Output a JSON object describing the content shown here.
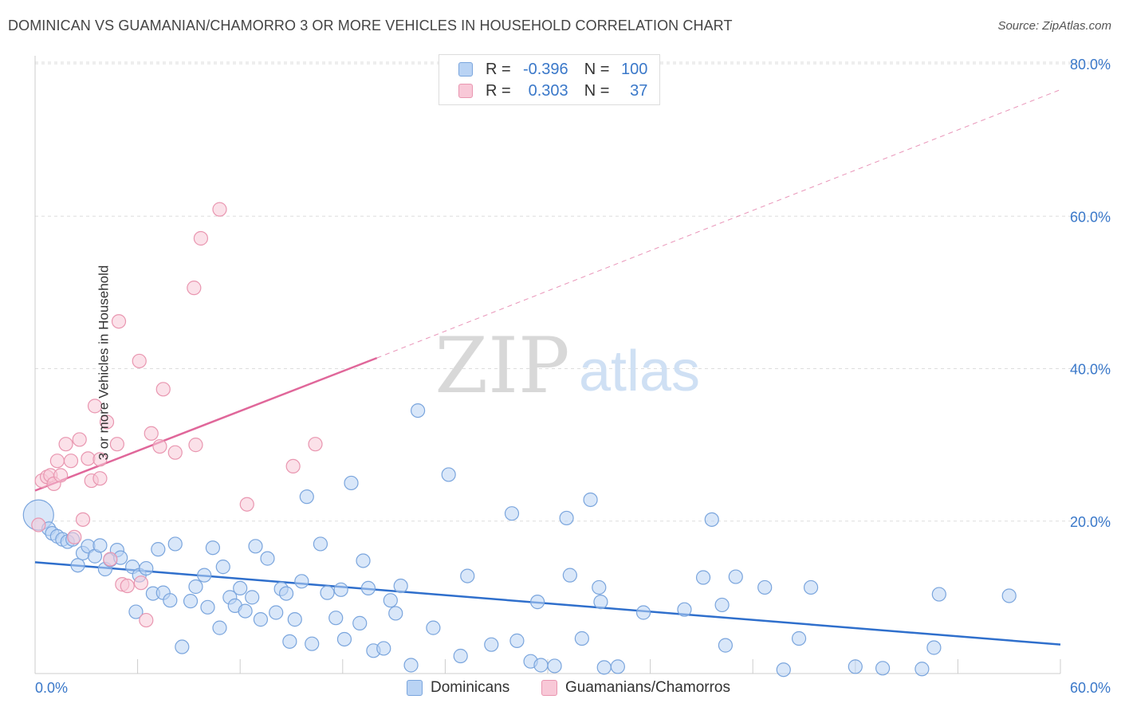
{
  "title": "DOMINICAN VS GUAMANIAN/CHAMORRO 3 OR MORE VEHICLES IN HOUSEHOLD CORRELATION CHART",
  "source": "Source: ZipAtlas.com",
  "watermark": {
    "zip": "ZIP",
    "atlas": "atlas"
  },
  "legend_top": [
    {
      "r_label": "R =",
      "r_value": "-0.396",
      "n_label": "N =",
      "n_value": "100"
    },
    {
      "r_label": "R =",
      "r_value": "0.303",
      "n_label": "N =",
      "n_value": "37"
    }
  ],
  "legend_bottom": [
    "Dominicans",
    "Guamanians/Chamorros"
  ],
  "colors": {
    "blue_fill": "#b9d3f4",
    "blue_stroke": "#7aa5dd",
    "blue_line": "#2f6fcc",
    "pink_fill": "#f8c8d7",
    "pink_stroke": "#e996b0",
    "pink_line": "#e0679a",
    "tick_label": "#3a78c9",
    "grid": "#dddddd"
  },
  "chart_data": {
    "type": "scatter",
    "title": "DOMINICAN VS GUAMANIAN/CHAMORRO 3 OR MORE VEHICLES IN HOUSEHOLD CORRELATION CHART",
    "xlabel": "",
    "ylabel": "3 or more Vehicles in Household",
    "xlim": [
      0,
      60
    ],
    "ylim": [
      0,
      80
    ],
    "x_tick_labels": [
      "0.0%",
      "60.0%"
    ],
    "y_ticks": [
      20,
      40,
      60,
      80
    ],
    "y_tick_labels": [
      "20.0%",
      "40.0%",
      "60.0%",
      "80.0%"
    ],
    "grid": true,
    "legend_position": "top-center",
    "series": [
      {
        "name": "Dominicans",
        "color": "#b9d3f4",
        "points": [
          [
            0.2,
            20.8
          ],
          [
            0.8,
            19.0
          ],
          [
            1.0,
            18.4
          ],
          [
            1.3,
            18.0
          ],
          [
            1.6,
            17.6
          ],
          [
            1.9,
            17.3
          ],
          [
            2.2,
            17.6
          ],
          [
            2.5,
            14.2
          ],
          [
            2.8,
            15.8
          ],
          [
            3.1,
            16.7
          ],
          [
            3.5,
            15.4
          ],
          [
            3.8,
            16.8
          ],
          [
            4.1,
            13.7
          ],
          [
            4.4,
            14.9
          ],
          [
            4.8,
            16.2
          ],
          [
            5.0,
            15.2
          ],
          [
            5.7,
            14.0
          ],
          [
            5.9,
            8.1
          ],
          [
            6.1,
            12.9
          ],
          [
            6.5,
            13.8
          ],
          [
            6.9,
            10.5
          ],
          [
            7.2,
            16.3
          ],
          [
            7.5,
            10.6
          ],
          [
            7.9,
            9.6
          ],
          [
            8.2,
            17.0
          ],
          [
            8.6,
            3.5
          ],
          [
            9.1,
            9.5
          ],
          [
            9.4,
            11.4
          ],
          [
            9.9,
            12.9
          ],
          [
            10.1,
            8.7
          ],
          [
            10.4,
            16.5
          ],
          [
            10.8,
            6.0
          ],
          [
            11.0,
            14.0
          ],
          [
            11.4,
            10.0
          ],
          [
            11.7,
            8.9
          ],
          [
            12.0,
            11.2
          ],
          [
            12.3,
            8.2
          ],
          [
            12.7,
            10.0
          ],
          [
            12.9,
            16.7
          ],
          [
            13.2,
            7.1
          ],
          [
            13.6,
            15.1
          ],
          [
            14.1,
            8.0
          ],
          [
            14.4,
            11.1
          ],
          [
            14.7,
            10.5
          ],
          [
            14.9,
            4.2
          ],
          [
            15.2,
            7.1
          ],
          [
            15.6,
            12.1
          ],
          [
            15.9,
            23.2
          ],
          [
            16.2,
            3.9
          ],
          [
            16.7,
            17.0
          ],
          [
            17.1,
            10.6
          ],
          [
            17.6,
            7.3
          ],
          [
            17.9,
            11.0
          ],
          [
            18.1,
            4.5
          ],
          [
            18.5,
            25.0
          ],
          [
            19.0,
            6.6
          ],
          [
            19.2,
            14.8
          ],
          [
            19.5,
            11.2
          ],
          [
            19.8,
            3.0
          ],
          [
            20.4,
            3.3
          ],
          [
            20.8,
            9.6
          ],
          [
            21.1,
            7.9
          ],
          [
            21.4,
            11.5
          ],
          [
            22.0,
            1.1
          ],
          [
            22.4,
            34.5
          ],
          [
            23.3,
            6.0
          ],
          [
            24.2,
            26.1
          ],
          [
            24.9,
            2.3
          ],
          [
            25.3,
            12.8
          ],
          [
            26.7,
            3.8
          ],
          [
            27.9,
            21.0
          ],
          [
            28.2,
            4.3
          ],
          [
            29.0,
            1.6
          ],
          [
            29.4,
            9.4
          ],
          [
            29.6,
            1.1
          ],
          [
            30.4,
            1.0
          ],
          [
            31.1,
            20.4
          ],
          [
            31.3,
            12.9
          ],
          [
            32.0,
            4.6
          ],
          [
            32.5,
            22.8
          ],
          [
            33.0,
            11.3
          ],
          [
            33.1,
            9.4
          ],
          [
            33.3,
            0.8
          ],
          [
            34.1,
            0.9
          ],
          [
            35.6,
            8.0
          ],
          [
            38.0,
            8.4
          ],
          [
            39.1,
            12.6
          ],
          [
            39.6,
            20.2
          ],
          [
            40.2,
            9.0
          ],
          [
            40.4,
            3.7
          ],
          [
            41.0,
            12.7
          ],
          [
            42.7,
            11.3
          ],
          [
            43.8,
            0.5
          ],
          [
            44.7,
            4.6
          ],
          [
            45.4,
            11.3
          ],
          [
            48.0,
            0.9
          ],
          [
            49.6,
            0.7
          ],
          [
            51.9,
            0.6
          ],
          [
            52.6,
            3.4
          ],
          [
            52.9,
            10.4
          ],
          [
            57.0,
            10.2
          ]
        ]
      },
      {
        "name": "Guamanians/Chamorros",
        "color": "#f8c8d7",
        "points": [
          [
            0.2,
            19.5
          ],
          [
            0.4,
            25.3
          ],
          [
            0.7,
            25.8
          ],
          [
            0.9,
            26.0
          ],
          [
            1.1,
            24.9
          ],
          [
            1.3,
            27.9
          ],
          [
            1.5,
            26.0
          ],
          [
            1.8,
            30.1
          ],
          [
            2.1,
            27.9
          ],
          [
            2.3,
            17.9
          ],
          [
            2.6,
            30.7
          ],
          [
            2.8,
            20.2
          ],
          [
            3.1,
            28.2
          ],
          [
            3.3,
            25.3
          ],
          [
            3.5,
            35.1
          ],
          [
            3.8,
            28.1
          ],
          [
            3.8,
            25.6
          ],
          [
            4.2,
            33.0
          ],
          [
            4.4,
            15.0
          ],
          [
            4.8,
            30.1
          ],
          [
            4.9,
            46.2
          ],
          [
            5.1,
            11.7
          ],
          [
            5.4,
            11.5
          ],
          [
            6.1,
            41.0
          ],
          [
            6.2,
            11.9
          ],
          [
            6.5,
            7.0
          ],
          [
            6.8,
            31.5
          ],
          [
            7.3,
            29.8
          ],
          [
            7.5,
            37.3
          ],
          [
            8.2,
            29.0
          ],
          [
            9.3,
            50.6
          ],
          [
            9.4,
            30.0
          ],
          [
            9.7,
            57.1
          ],
          [
            10.8,
            60.9
          ],
          [
            12.4,
            22.2
          ],
          [
            15.1,
            27.2
          ],
          [
            16.4,
            30.1
          ]
        ]
      }
    ],
    "trend_lines": [
      {
        "series": "Dominicans",
        "x": [
          0,
          60
        ],
        "y": [
          14.6,
          3.8
        ],
        "style": "solid"
      },
      {
        "series": "Guamanians/Chamorros",
        "x": [
          0,
          20
        ],
        "y": [
          24.0,
          41.4
        ],
        "style": "solid"
      },
      {
        "series": "Guamanians/Chamorros",
        "x": [
          20,
          60
        ],
        "y": [
          41.4,
          76.6
        ],
        "style": "dashed"
      }
    ]
  }
}
